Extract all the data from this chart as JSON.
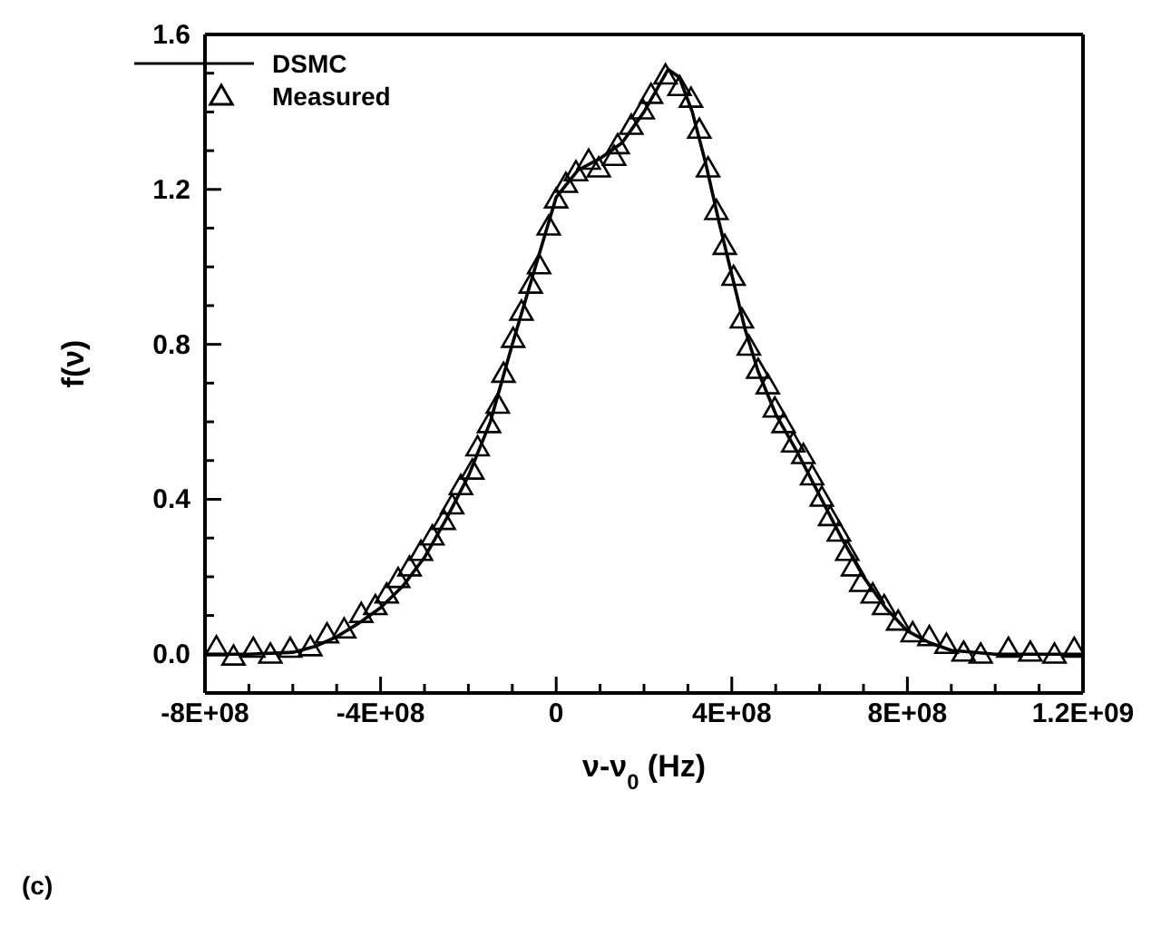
{
  "chart_data": {
    "type": "line",
    "xlabel": "ν-ν$_{0}$ (Hz)",
    "ylabel": "f(ν)",
    "annotations": [
      "(c)"
    ],
    "xlim": [
      -800000000,
      1200000000
    ],
    "xticks": [
      {
        "value": -800000000,
        "label": "-8E+08"
      },
      {
        "value": -700000000,
        "label": null
      },
      {
        "value": -600000000,
        "label": null
      },
      {
        "value": -500000000,
        "label": null
      },
      {
        "value": -400000000,
        "label": "-4E+08"
      },
      {
        "value": -300000000,
        "label": null
      },
      {
        "value": -200000000,
        "label": null
      },
      {
        "value": -100000000,
        "label": null
      },
      0,
      {
        "value": 100000000,
        "label": null
      },
      {
        "value": 200000000,
        "label": null
      },
      {
        "value": 300000000,
        "label": null
      },
      {
        "value": 400000000,
        "label": "4E+08"
      },
      {
        "value": 500000000,
        "label": null
      },
      {
        "value": 600000000,
        "label": null
      },
      {
        "value": 700000000,
        "label": null
      },
      {
        "value": 800000000,
        "label": "8E+08"
      },
      {
        "value": 900000000,
        "label": null
      },
      {
        "value": 1000000000,
        "label": null
      },
      {
        "value": 1100000000,
        "label": null
      },
      {
        "value": 1200000000,
        "label": "1.2E+09"
      }
    ],
    "ylim": [
      -0.1,
      1.6
    ],
    "yticks": [
      {
        "value": -0.1,
        "label": null
      },
      {
        "value": 0,
        "label": "0.0"
      },
      {
        "value": 0.1,
        "label": null
      },
      {
        "value": 0.2,
        "label": null
      },
      {
        "value": 0.3,
        "label": null
      },
      0.4,
      {
        "value": 0.5,
        "label": null
      },
      {
        "value": 0.6,
        "label": null
      },
      {
        "value": 0.7,
        "label": null
      },
      0.8,
      {
        "value": 0.9,
        "label": null
      },
      {
        "value": 1.0,
        "label": null
      },
      {
        "value": 1.1,
        "label": null
      },
      1.2,
      {
        "value": 1.3,
        "label": null
      },
      {
        "value": 1.4,
        "label": null
      },
      {
        "value": 1.5,
        "label": null
      },
      1.6
    ],
    "grid": false,
    "legend": "top left",
    "series": [
      {
        "name": "DSMC",
        "color": "#000000",
        "marker": "none",
        "line_style": "solid",
        "x": [
          -800000000,
          -700000000,
          -600000000,
          -550000000,
          -500000000,
          -450000000,
          -400000000,
          -350000000,
          -300000000,
          -250000000,
          -200000000,
          -150000000,
          -100000000,
          -50000000,
          0,
          50000000,
          100000000,
          150000000,
          200000000,
          230000000,
          255000000,
          280000000,
          310000000,
          340000000,
          370000000,
          400000000,
          430000000,
          460000000,
          500000000,
          550000000,
          600000000,
          650000000,
          700000000,
          750000000,
          800000000,
          850000000,
          900000000,
          1000000000,
          1100000000,
          1200000000
        ],
        "values": [
          0.0,
          0.0,
          0.005,
          0.02,
          0.045,
          0.08,
          0.12,
          0.175,
          0.25,
          0.35,
          0.46,
          0.6,
          0.8,
          0.99,
          1.18,
          1.25,
          1.28,
          1.32,
          1.4,
          1.46,
          1.51,
          1.49,
          1.4,
          1.27,
          1.12,
          0.98,
          0.84,
          0.73,
          0.62,
          0.52,
          0.41,
          0.3,
          0.2,
          0.12,
          0.06,
          0.03,
          0.01,
          0.0,
          0.0,
          0.0
        ]
      },
      {
        "name": "Measured",
        "type": "scatter",
        "color": "#000000",
        "marker": "triangle",
        "x": [
          -774000000,
          -735000000,
          -690000000,
          -651000000,
          -606000000,
          -560000000,
          -522000000,
          -483000000,
          -444000000,
          -412000000,
          -386000000,
          -360000000,
          -334000000,
          -308000000,
          -282000000,
          -256000000,
          -237000000,
          -217000000,
          -191000000,
          -179000000,
          -153000000,
          -133000000,
          -120000000,
          -98000000,
          -79000000,
          -58000000,
          -39000000,
          -17000000,
          0,
          22000000,
          45000000,
          74000000,
          97000000,
          132000000,
          140000000,
          171000000,
          197000000,
          216000000,
          249000000,
          281000000,
          307000000,
          326000000,
          346000000,
          365000000,
          384000000,
          404000000,
          423000000,
          439000000,
          460000000,
          482000000,
          498000000,
          518000000,
          540000000,
          563000000,
          583000000,
          605000000,
          624000000,
          644000000,
          663000000,
          676000000,
          695000000,
          721000000,
          747000000,
          779000000,
          812000000,
          850000000,
          889000000,
          928000000,
          967000000,
          1030000000,
          1080000000,
          1135000000,
          1180000000
        ],
        "values": [
          0.014,
          -0.01,
          0.01,
          -0.005,
          0.01,
          0.014,
          0.047,
          0.06,
          0.1,
          0.12,
          0.15,
          0.19,
          0.22,
          0.26,
          0.3,
          0.34,
          0.38,
          0.43,
          0.47,
          0.53,
          0.59,
          0.64,
          0.72,
          0.81,
          0.88,
          0.95,
          1.0,
          1.1,
          1.17,
          1.21,
          1.24,
          1.27,
          1.25,
          1.28,
          1.31,
          1.36,
          1.4,
          1.44,
          1.49,
          1.46,
          1.43,
          1.35,
          1.25,
          1.14,
          1.05,
          0.97,
          0.86,
          0.79,
          0.73,
          0.69,
          0.63,
          0.59,
          0.54,
          0.51,
          0.455,
          0.4,
          0.35,
          0.31,
          0.26,
          0.22,
          0.18,
          0.15,
          0.12,
          0.08,
          0.05,
          0.04,
          0.02,
          0.0,
          -0.005,
          0.01,
          0.0,
          -0.005,
          0.01
        ]
      }
    ]
  }
}
